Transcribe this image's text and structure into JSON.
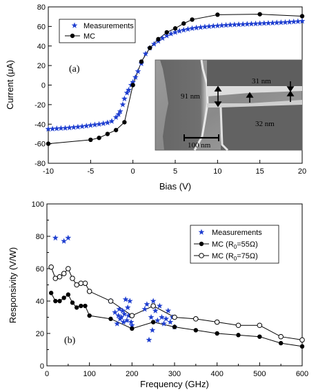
{
  "chart_data": [
    {
      "type": "scatter",
      "panel_label": "(a)",
      "xlabel": "Bias (V)",
      "ylabel": "Current (μA)",
      "xlim": [
        -10,
        20
      ],
      "ylim": [
        -80,
        80
      ],
      "xticks": [
        -10,
        -5,
        0,
        5,
        10,
        15,
        20
      ],
      "yticks": [
        -80,
        -60,
        -40,
        -20,
        0,
        20,
        40,
        60,
        80
      ],
      "legend": {
        "position": "top-left",
        "entries": [
          "Measurements",
          "MC"
        ]
      },
      "series": [
        {
          "name": "Measurements",
          "marker": "star",
          "color": "#1f3fd0",
          "points": [
            [
              -10,
              -45
            ],
            [
              -9.5,
              -44.8
            ],
            [
              -9,
              -44.5
            ],
            [
              -8.5,
              -44.2
            ],
            [
              -8,
              -44
            ],
            [
              -7.5,
              -43.6
            ],
            [
              -7,
              -43.2
            ],
            [
              -6.5,
              -42.8
            ],
            [
              -6,
              -42.3
            ],
            [
              -5.5,
              -41.8
            ],
            [
              -5,
              -41.2
            ],
            [
              -4.5,
              -40.6
            ],
            [
              -4,
              -40
            ],
            [
              -3.5,
              -39.3
            ],
            [
              -3,
              -38.5
            ],
            [
              -2.5,
              -37
            ],
            [
              -2,
              -33
            ],
            [
              -1.7,
              -30
            ],
            [
              -1.5,
              -27
            ],
            [
              -1.2,
              -20
            ],
            [
              -1,
              -14
            ],
            [
              -0.7,
              -8
            ],
            [
              -0.5,
              -5
            ],
            [
              -0.2,
              0
            ],
            [
              0,
              3
            ],
            [
              0.3,
              8
            ],
            [
              0.6,
              14
            ],
            [
              1,
              22
            ],
            [
              1.5,
              32
            ],
            [
              2,
              38
            ],
            [
              2.5,
              42
            ],
            [
              3,
              45
            ],
            [
              3.5,
              48
            ],
            [
              4,
              50.5
            ],
            [
              4.5,
              52.5
            ],
            [
              5,
              54
            ],
            [
              5.5,
              55.3
            ],
            [
              6,
              56.3
            ],
            [
              6.5,
              57.2
            ],
            [
              7,
              58
            ],
            [
              7.5,
              58.6
            ],
            [
              8,
              59.1
            ],
            [
              8.5,
              59.6
            ],
            [
              9,
              60
            ],
            [
              9.5,
              60.4
            ],
            [
              10,
              60.7
            ],
            [
              10.5,
              61
            ],
            [
              11,
              61.3
            ],
            [
              11.5,
              61.6
            ],
            [
              12,
              61.8
            ],
            [
              12.5,
              62
            ],
            [
              13,
              62.2
            ],
            [
              13.5,
              62.4
            ],
            [
              14,
              62.6
            ],
            [
              14.5,
              62.8
            ],
            [
              15,
              63
            ],
            [
              15.5,
              63.2
            ],
            [
              16,
              63.4
            ],
            [
              16.5,
              63.6
            ],
            [
              17,
              63.8
            ],
            [
              17.5,
              64
            ],
            [
              18,
              64.2
            ],
            [
              18.5,
              64.5
            ],
            [
              19,
              64.8
            ],
            [
              19.5,
              65.1
            ],
            [
              20,
              65.4
            ]
          ]
        },
        {
          "name": "MC",
          "marker": "filled-circle",
          "color": "#000000",
          "points": [
            [
              -10,
              -60
            ],
            [
              -5,
              -56
            ],
            [
              -4,
              -54
            ],
            [
              -3,
              -50
            ],
            [
              -2,
              -46
            ],
            [
              -1,
              -38
            ],
            [
              0,
              0
            ],
            [
              1,
              24
            ],
            [
              2,
              38
            ],
            [
              3,
              47
            ],
            [
              4,
              54
            ],
            [
              5,
              58
            ],
            [
              6,
              63
            ],
            [
              7,
              67
            ],
            [
              10,
              72
            ],
            [
              15,
              72.5
            ],
            [
              20,
              70.5
            ]
          ]
        }
      ],
      "inset": {
        "annotations": [
          "31 nm",
          "91 nm",
          "32 nm",
          "100 nm"
        ]
      }
    },
    {
      "type": "scatter",
      "panel_label": "(b)",
      "xlabel": "Frequency (GHz)",
      "ylabel": "Responsivity (V/W)",
      "xlim": [
        0,
        600
      ],
      "ylim": [
        0,
        100
      ],
      "xticks": [
        0,
        100,
        200,
        300,
        400,
        500,
        600
      ],
      "yticks": [
        0,
        20,
        40,
        60,
        80,
        100
      ],
      "legend": {
        "position": "top-right",
        "entries": [
          {
            "prefix": "Measurements",
            "sub": "",
            "suffix": ""
          },
          {
            "prefix": "MC (R",
            "sub": "0",
            "suffix": "=55Ω)"
          },
          {
            "prefix": "MC (R",
            "sub": "0",
            "suffix": "=75Ω)"
          }
        ]
      },
      "series": [
        {
          "name": "Measurements",
          "marker": "star",
          "color": "#1f3fd0",
          "points": [
            [
              20,
              79
            ],
            [
              40,
              77
            ],
            [
              50,
              79
            ],
            [
              150,
              40
            ],
            [
              160,
              33
            ],
            [
              165,
              26
            ],
            [
              168,
              31
            ],
            [
              170,
              35
            ],
            [
              172,
              29
            ],
            [
              175,
              30
            ],
            [
              178,
              34
            ],
            [
              180,
              27
            ],
            [
              182,
              32
            ],
            [
              185,
              41
            ],
            [
              188,
              28
            ],
            [
              190,
              36
            ],
            [
              192,
              31
            ],
            [
              195,
              40
            ],
            [
              198,
              27
            ],
            [
              200,
              25
            ],
            [
              230,
              35
            ],
            [
              235,
              38
            ],
            [
              240,
              16
            ],
            [
              245,
              30
            ],
            [
              248,
              22
            ],
            [
              250,
              40
            ],
            [
              255,
              34
            ],
            [
              260,
              28
            ],
            [
              265,
              37
            ],
            [
              270,
              30
            ],
            [
              275,
              26
            ],
            [
              280,
              29
            ],
            [
              285,
              34
            ],
            [
              290,
              27
            ],
            [
              295,
              30
            ],
            [
              300,
              24
            ]
          ]
        },
        {
          "name": "MC (R0=55Ω)",
          "marker": "filled-circle",
          "color": "#000000",
          "points": [
            [
              10,
              45
            ],
            [
              20,
              40
            ],
            [
              30,
              40
            ],
            [
              40,
              42
            ],
            [
              50,
              44
            ],
            [
              60,
              39
            ],
            [
              70,
              36
            ],
            [
              80,
              37
            ],
            [
              90,
              37
            ],
            [
              100,
              31
            ],
            [
              150,
              29
            ],
            [
              200,
              23
            ],
            [
              250,
              27
            ],
            [
              300,
              24
            ],
            [
              350,
              22
            ],
            [
              400,
              20
            ],
            [
              450,
              19
            ],
            [
              500,
              18
            ],
            [
              550,
              14
            ],
            [
              600,
              12
            ]
          ]
        },
        {
          "name": "MC (R0=75Ω)",
          "marker": "open-circle",
          "color": "#000000",
          "points": [
            [
              10,
              61
            ],
            [
              20,
              54
            ],
            [
              30,
              55
            ],
            [
              40,
              57
            ],
            [
              50,
              60
            ],
            [
              60,
              54
            ],
            [
              70,
              50
            ],
            [
              80,
              51
            ],
            [
              90,
              51
            ],
            [
              100,
              46
            ],
            [
              150,
              40
            ],
            [
              200,
              31
            ],
            [
              250,
              37
            ],
            [
              300,
              30
            ],
            [
              350,
              29
            ],
            [
              400,
              27
            ],
            [
              450,
              25
            ],
            [
              500,
              25
            ],
            [
              550,
              18
            ],
            [
              600,
              16
            ]
          ]
        }
      ]
    }
  ]
}
